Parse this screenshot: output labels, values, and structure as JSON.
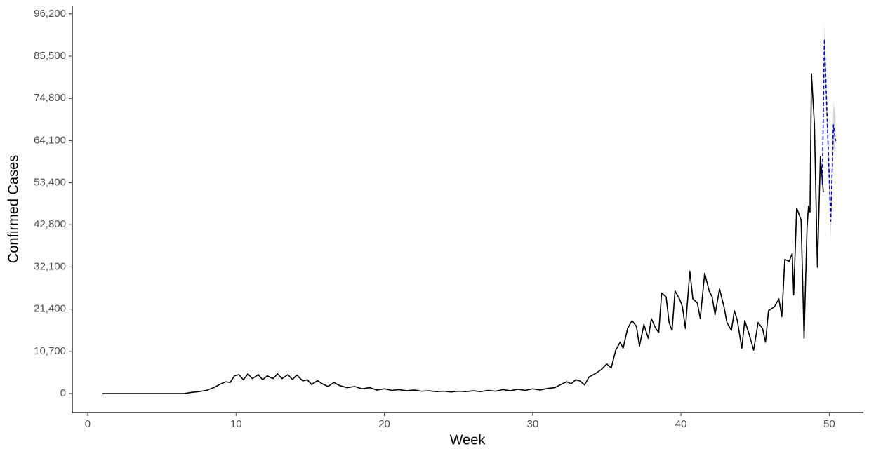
{
  "chart_data": {
    "type": "line",
    "xlabel": "Week",
    "ylabel": "Confirmed Cases",
    "xlim": [
      -1.04,
      52.3
    ],
    "xticks": [
      0,
      10,
      20,
      30,
      40,
      50
    ],
    "ylim": [
      -4800,
      98300
    ],
    "yticks": [
      0,
      {
        "value": 10700,
        "label": "10,700"
      },
      {
        "value": 21400,
        "label": "21,400"
      },
      {
        "value": 32100,
        "label": "32,100"
      },
      {
        "value": 42800,
        "label": "42,800"
      },
      {
        "value": 53400,
        "label": "53,400"
      },
      {
        "value": 64100,
        "label": "64,100"
      },
      {
        "value": 74800,
        "label": "74,800"
      },
      {
        "value": 85500,
        "label": "85,500"
      },
      {
        "value": 96200,
        "label": "96,200"
      }
    ],
    "grid": false,
    "band": {
      "color": "#bdbdbd",
      "x": [
        49.53,
        49.67,
        50.1,
        50.28,
        50.43
      ],
      "lower": [
        47000,
        85000,
        39000,
        62000,
        60000
      ],
      "upper": [
        58000,
        94000,
        48000,
        74000,
        70000
      ]
    },
    "series": [
      {
        "color": "#000000",
        "dash": false,
        "x": [
          1,
          6.5,
          7,
          7.5,
          8,
          8.5,
          9,
          9.3,
          9.6,
          9.9,
          10.2,
          10.5,
          10.8,
          11.1,
          11.5,
          11.8,
          12.1,
          12.5,
          12.8,
          13.1,
          13.5,
          13.8,
          14.1,
          14.5,
          14.8,
          15.1,
          15.5,
          15.8,
          16.2,
          16.6,
          17,
          17.5,
          18,
          18.5,
          19,
          19.5,
          20,
          20.5,
          21,
          21.5,
          22,
          22.5,
          23,
          23.5,
          24,
          24.5,
          25,
          25.5,
          26,
          26.5,
          27,
          27.5,
          28,
          28.5,
          29,
          29.5,
          30,
          30.5,
          31,
          31.5,
          32,
          32.3,
          32.6,
          32.9,
          33.2,
          33.5,
          33.8,
          34.2,
          34.6,
          35,
          35.3,
          35.6,
          35.9,
          36.1,
          36.4,
          36.7,
          37,
          37.2,
          37.5,
          37.8,
          38,
          38.3,
          38.5,
          38.7,
          39,
          39.2,
          39.4,
          39.6,
          39.9,
          40.1,
          40.3,
          40.6,
          40.8,
          41.1,
          41.3,
          41.6,
          41.9,
          42.1,
          42.3,
          42.6,
          42.9,
          43.1,
          43.4,
          43.6,
          43.8,
          44.1,
          44.3,
          44.6,
          44.9,
          45.2,
          45.5,
          45.7,
          45.9,
          46.3,
          46.6,
          46.8,
          47,
          47.3,
          47.5,
          47.6,
          47.8,
          48.1,
          48.3,
          48.5,
          48.6,
          48.7,
          48.8,
          49,
          49.2,
          49.4,
          49.6
        ],
        "values": [
          0,
          0,
          300,
          500,
          800,
          1500,
          2500,
          3000,
          2800,
          4500,
          4800,
          3500,
          5000,
          3800,
          4800,
          3500,
          4500,
          3800,
          5000,
          3800,
          4800,
          3600,
          4700,
          3200,
          3500,
          2300,
          3300,
          2500,
          1800,
          2800,
          2000,
          1500,
          1800,
          1200,
          1500,
          900,
          1200,
          800,
          1000,
          700,
          900,
          600,
          700,
          500,
          600,
          400,
          600,
          500,
          700,
          500,
          800,
          600,
          1000,
          700,
          1100,
          800,
          1200,
          900,
          1300,
          1500,
          2500,
          3000,
          2500,
          3500,
          3200,
          2200,
          4200,
          5000,
          6000,
          7500,
          6500,
          11000,
          13000,
          11500,
          16500,
          18500,
          17000,
          12000,
          17500,
          14000,
          19000,
          16500,
          15500,
          25500,
          24500,
          18000,
          16000,
          26000,
          24000,
          22000,
          16500,
          31000,
          24000,
          23000,
          19000,
          30500,
          26000,
          24500,
          20000,
          26500,
          22000,
          18000,
          16000,
          21000,
          18500,
          11500,
          18500,
          15000,
          11000,
          18000,
          16500,
          13000,
          21000,
          22000,
          24000,
          19500,
          34000,
          33500,
          35500,
          25000,
          47000,
          44000,
          14000,
          42000,
          47500,
          46000,
          81000,
          68000,
          32000,
          60000,
          51000
        ]
      },
      {
        "color": "#0000cc",
        "dash": true,
        "x": [
          49.53,
          49.67,
          50.1,
          50.28,
          50.43
        ],
        "values": [
          53000,
          89800,
          43700,
          68100,
          64000
        ]
      }
    ]
  }
}
